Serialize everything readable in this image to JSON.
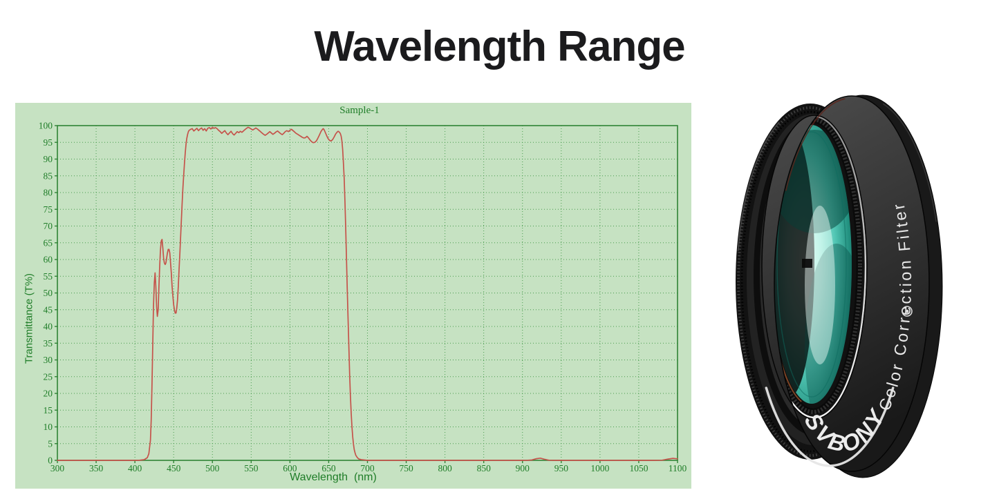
{
  "page": {
    "title": "Wavelength Range",
    "background": "#ffffff",
    "title_color": "#1b1b1d"
  },
  "chart": {
    "title": "Sample-1",
    "x_axis_label": "Wavelength  (nm)",
    "y_axis_label": "Transmittance (T%)",
    "panel_bg": "#c6e2c2",
    "text_color": "#1f7d28",
    "grid_color": "#459a4b",
    "border_color": "#2f8335",
    "curve_color": "#c5524a"
  },
  "chart_data": {
    "type": "line",
    "title": "Sample-1",
    "xlabel": "Wavelength (nm)",
    "ylabel": "Transmittance (T%)",
    "xlim": [
      300,
      1100
    ],
    "ylim": [
      0,
      100
    ],
    "x_ticks": [
      300,
      350,
      400,
      450,
      500,
      550,
      600,
      650,
      700,
      750,
      800,
      850,
      900,
      950,
      1000,
      1050,
      1100
    ],
    "y_ticks": [
      0,
      5,
      10,
      15,
      20,
      25,
      30,
      35,
      40,
      45,
      50,
      55,
      60,
      65,
      70,
      75,
      80,
      85,
      90,
      95,
      100
    ],
    "grid": "dotted",
    "legend": "none",
    "series": [
      {
        "name": "Sample-1",
        "color": "#c5524a",
        "points": [
          [
            300,
            0
          ],
          [
            360,
            0
          ],
          [
            405,
            0
          ],
          [
            412,
            0.2
          ],
          [
            416,
            0.8
          ],
          [
            418,
            2
          ],
          [
            420,
            6
          ],
          [
            421,
            12
          ],
          [
            422,
            22
          ],
          [
            423,
            34
          ],
          [
            424,
            46
          ],
          [
            425,
            53
          ],
          [
            426,
            56
          ],
          [
            427,
            52
          ],
          [
            428,
            46
          ],
          [
            429,
            43
          ],
          [
            430,
            45
          ],
          [
            431,
            52
          ],
          [
            432,
            58
          ],
          [
            433,
            63
          ],
          [
            434,
            65.5
          ],
          [
            435,
            66
          ],
          [
            436,
            63.5
          ],
          [
            437,
            60.5
          ],
          [
            438,
            59
          ],
          [
            439,
            58.5
          ],
          [
            440,
            59
          ],
          [
            441,
            60.5
          ],
          [
            442,
            62
          ],
          [
            443,
            63
          ],
          [
            444,
            63
          ],
          [
            445,
            62
          ],
          [
            446,
            59
          ],
          [
            447,
            56
          ],
          [
            448,
            52
          ],
          [
            449,
            49
          ],
          [
            450,
            46.5
          ],
          [
            451,
            45
          ],
          [
            452,
            44
          ],
          [
            453,
            44
          ],
          [
            454,
            45.5
          ],
          [
            455,
            48
          ],
          [
            456,
            52
          ],
          [
            457,
            57
          ],
          [
            458,
            62
          ],
          [
            459,
            67
          ],
          [
            460,
            72
          ],
          [
            461,
            77
          ],
          [
            462,
            81.5
          ],
          [
            463,
            85.5
          ],
          [
            464,
            89
          ],
          [
            465,
            92
          ],
          [
            466,
            94.5
          ],
          [
            467,
            96.2
          ],
          [
            468,
            97.4
          ],
          [
            469,
            98.2
          ],
          [
            470,
            98.6
          ],
          [
            472,
            98.9
          ],
          [
            474,
            99.1
          ],
          [
            476,
            98.4
          ],
          [
            478,
            98.8
          ],
          [
            480,
            99.2
          ],
          [
            482,
            98.5
          ],
          [
            484,
            99
          ],
          [
            486,
            99.3
          ],
          [
            488,
            98.6
          ],
          [
            490,
            99.1
          ],
          [
            492,
            98.4
          ],
          [
            494,
            99.2
          ],
          [
            496,
            99.4
          ],
          [
            498,
            99
          ],
          [
            500,
            99.5
          ],
          [
            502,
            99.2
          ],
          [
            504,
            99.4
          ],
          [
            506,
            99.1
          ],
          [
            508,
            98.6
          ],
          [
            510,
            98.2
          ],
          [
            512,
            97.7
          ],
          [
            514,
            98.1
          ],
          [
            516,
            98.5
          ],
          [
            518,
            97.8
          ],
          [
            520,
            97.3
          ],
          [
            522,
            97.8
          ],
          [
            524,
            98.3
          ],
          [
            526,
            97.6
          ],
          [
            528,
            97.2
          ],
          [
            530,
            97.7
          ],
          [
            532,
            98.2
          ],
          [
            534,
            97.9
          ],
          [
            536,
            98.3
          ],
          [
            538,
            98
          ],
          [
            540,
            98.4
          ],
          [
            542,
            98.8
          ],
          [
            544,
            99.2
          ],
          [
            546,
            99.5
          ],
          [
            548,
            99.3
          ],
          [
            550,
            99
          ],
          [
            552,
            98.7
          ],
          [
            554,
            99
          ],
          [
            556,
            99.3
          ],
          [
            558,
            99
          ],
          [
            560,
            98.6
          ],
          [
            562,
            98.2
          ],
          [
            564,
            97.8
          ],
          [
            566,
            97.4
          ],
          [
            568,
            97.1
          ],
          [
            570,
            97.4
          ],
          [
            572,
            97.8
          ],
          [
            574,
            98.2
          ],
          [
            576,
            97.8
          ],
          [
            578,
            97.4
          ],
          [
            580,
            97.7
          ],
          [
            582,
            98.1
          ],
          [
            584,
            98.4
          ],
          [
            586,
            98
          ],
          [
            588,
            97.6
          ],
          [
            590,
            97.3
          ],
          [
            592,
            97.7
          ],
          [
            594,
            98.2
          ],
          [
            596,
            98.5
          ],
          [
            598,
            98.2
          ],
          [
            600,
            98.6
          ],
          [
            602,
            98.9
          ],
          [
            604,
            98.5
          ],
          [
            606,
            98.1
          ],
          [
            608,
            97.7
          ],
          [
            610,
            97.4
          ],
          [
            612,
            97.1
          ],
          [
            614,
            96.8
          ],
          [
            616,
            96.5
          ],
          [
            618,
            96.3
          ],
          [
            620,
            96.4
          ],
          [
            622,
            96.8
          ],
          [
            624,
            96.3
          ],
          [
            626,
            95.7
          ],
          [
            628,
            95.2
          ],
          [
            630,
            94.9
          ],
          [
            632,
            95
          ],
          [
            634,
            95.4
          ],
          [
            636,
            96.2
          ],
          [
            638,
            97.2
          ],
          [
            640,
            98.2
          ],
          [
            642,
            98.9
          ],
          [
            643,
            99.1
          ],
          [
            644,
            98.8
          ],
          [
            645,
            98.3
          ],
          [
            647,
            97.2
          ],
          [
            649,
            96.2
          ],
          [
            651,
            95.6
          ],
          [
            653,
            95.4
          ],
          [
            655,
            95.8
          ],
          [
            657,
            96.6
          ],
          [
            659,
            97.5
          ],
          [
            661,
            98.1
          ],
          [
            662,
            98.3
          ],
          [
            663,
            98.2
          ],
          [
            664,
            98
          ],
          [
            665,
            97.6
          ],
          [
            666,
            96.9
          ],
          [
            667,
            95.5
          ],
          [
            668,
            93
          ],
          [
            669,
            89
          ],
          [
            670,
            84
          ],
          [
            671,
            77
          ],
          [
            672,
            69
          ],
          [
            673,
            60
          ],
          [
            674,
            51
          ],
          [
            675,
            42
          ],
          [
            676,
            34
          ],
          [
            677,
            26
          ],
          [
            678,
            19.5
          ],
          [
            679,
            14
          ],
          [
            680,
            10
          ],
          [
            681,
            7
          ],
          [
            682,
            4.8
          ],
          [
            683,
            3.2
          ],
          [
            684,
            2.2
          ],
          [
            685,
            1.5
          ],
          [
            687,
            0.8
          ],
          [
            689,
            0.4
          ],
          [
            692,
            0.2
          ],
          [
            696,
            0.1
          ],
          [
            700,
            0
          ],
          [
            750,
            0
          ],
          [
            800,
            0
          ],
          [
            850,
            0
          ],
          [
            905,
            0
          ],
          [
            912,
            0.1
          ],
          [
            918,
            0.5
          ],
          [
            923,
            0.65
          ],
          [
            928,
            0.35
          ],
          [
            934,
            0.05
          ],
          [
            940,
            0
          ],
          [
            1000,
            0
          ],
          [
            1070,
            0
          ],
          [
            1080,
            0.05
          ],
          [
            1088,
            0.4
          ],
          [
            1094,
            0.6
          ],
          [
            1100,
            0.45
          ]
        ]
      }
    ]
  },
  "filter_product": {
    "brand": "SVBONY",
    "ring_text": "Color Correction Filter",
    "text_color": "#e8e8e8",
    "body_color": "#333333",
    "glass_color": "#3cb8a6"
  }
}
